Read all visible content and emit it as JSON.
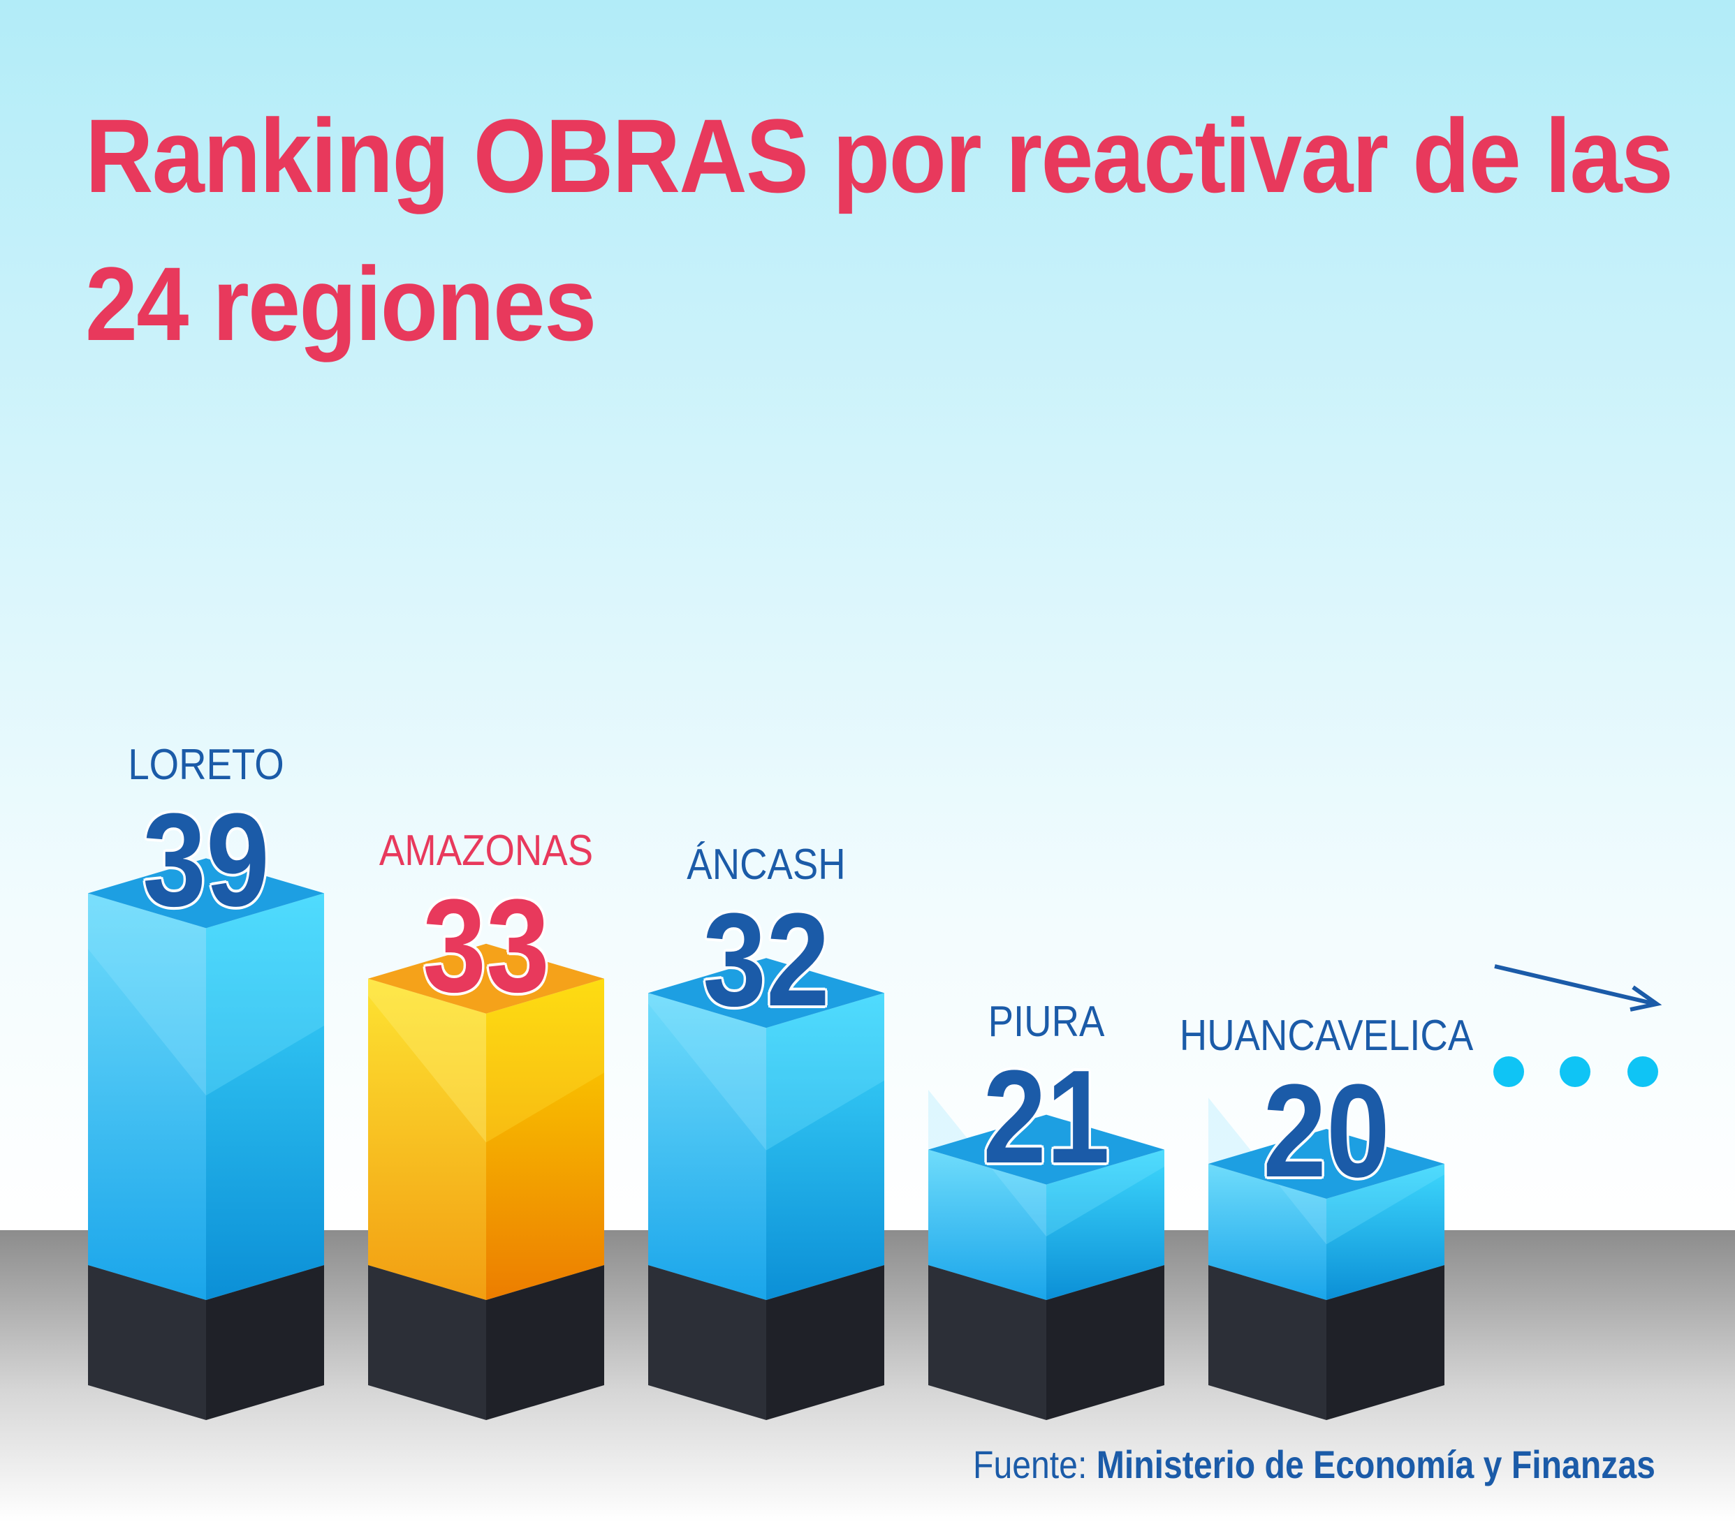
{
  "title": {
    "line1": "Ranking OBRAS por reactivar de las",
    "line2": "24 regiones"
  },
  "source": {
    "label": "Fuente:",
    "name": "Ministerio de  Economía y Finanzas"
  },
  "colors": {
    "title": "#e8395c",
    "highlight_text": "#e8395c",
    "default_text": "#1b5ba8",
    "bar_blue": "#29b6f6",
    "bar_highlight": "#f7a21b",
    "base": "#2b2e36",
    "sky_top": "#b2ecf8",
    "floor": "#8a8a8a"
  },
  "more_indicator": {
    "arrow": "arrow-right-icon",
    "dots": "ellipsis-icon"
  },
  "chart_data": {
    "type": "bar",
    "categories": [
      "LORETO",
      "AMAZONAS",
      "ÁNCASH",
      "PIURA",
      "HUANCAVELICA"
    ],
    "values": [
      39,
      33,
      32,
      21,
      20
    ],
    "highlight": "AMAZONAS",
    "title": "Ranking OBRAS por reactivar de las 24 regiones",
    "xlabel": "",
    "ylabel": "",
    "grid": false,
    "legend": "none"
  }
}
